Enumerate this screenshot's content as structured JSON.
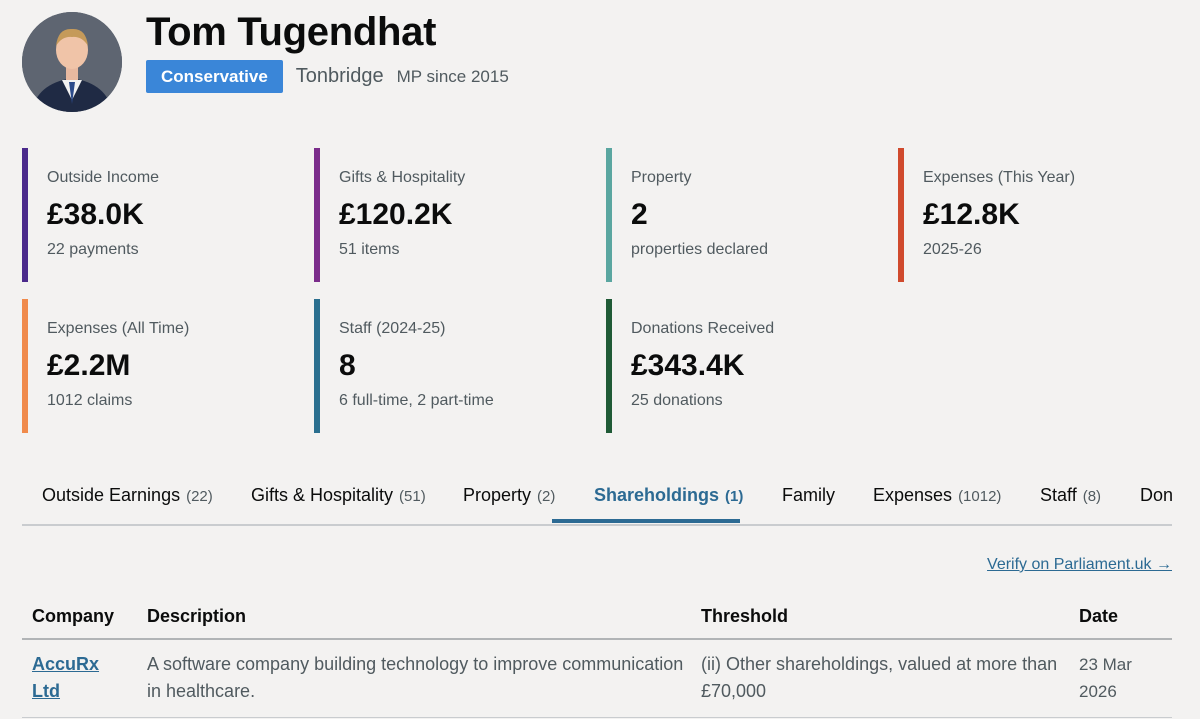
{
  "mp": {
    "name": "Tom Tugendhat",
    "party": "Conservative",
    "constituency": "Tonbridge",
    "since": "MP since 2015",
    "party_color": "#3a86d8"
  },
  "stats": [
    {
      "label": "Outside Income",
      "value": "£38.0K",
      "sub": "22 payments",
      "color": "#4b2a8c"
    },
    {
      "label": "Gifts & Hospitality",
      "value": "£120.2K",
      "sub": "51 items",
      "color": "#7b2d8b"
    },
    {
      "label": "Property",
      "value": "2",
      "sub": "properties declared",
      "color": "#5aa6a0"
    },
    {
      "label": "Expenses (This Year)",
      "value": "£12.8K",
      "sub": "2025-26",
      "color": "#d04a2d"
    },
    {
      "label": "Expenses (All Time)",
      "value": "£2.2M",
      "sub": "1012 claims",
      "color": "#f08a4b"
    },
    {
      "label": "Staff (2024-25)",
      "value": "8",
      "sub": "6 full-time, 2 part-time",
      "color": "#2a6f8f"
    },
    {
      "label": "Donations Received",
      "value": "£343.4K",
      "sub": "25 donations",
      "color": "#1f5a36"
    }
  ],
  "tabs": [
    {
      "label": "Outside Earnings",
      "count": "(22)"
    },
    {
      "label": "Gifts & Hospitality",
      "count": "(51)"
    },
    {
      "label": "Property",
      "count": "(2)"
    },
    {
      "label": "Shareholdings",
      "count": "(1)",
      "active": true
    },
    {
      "label": "Family",
      "count": ""
    },
    {
      "label": "Expenses",
      "count": "(1012)"
    },
    {
      "label": "Staff",
      "count": "(8)"
    },
    {
      "label": "Don",
      "count": ""
    }
  ],
  "verify_link": "Verify on Parliament.uk →",
  "table": {
    "headers": [
      "Company",
      "Description",
      "Threshold",
      "Date"
    ],
    "rows": [
      {
        "company_line1": "AccuRx",
        "company_line2": "Ltd",
        "description_line1": "A software company building technology to improve communication",
        "description_line2": "in healthcare.",
        "threshold_line1": "(ii) Other shareholdings, valued at more than",
        "threshold_line2": "£70,000",
        "date_line1": "23 Mar",
        "date_line2": "2026"
      }
    ]
  }
}
